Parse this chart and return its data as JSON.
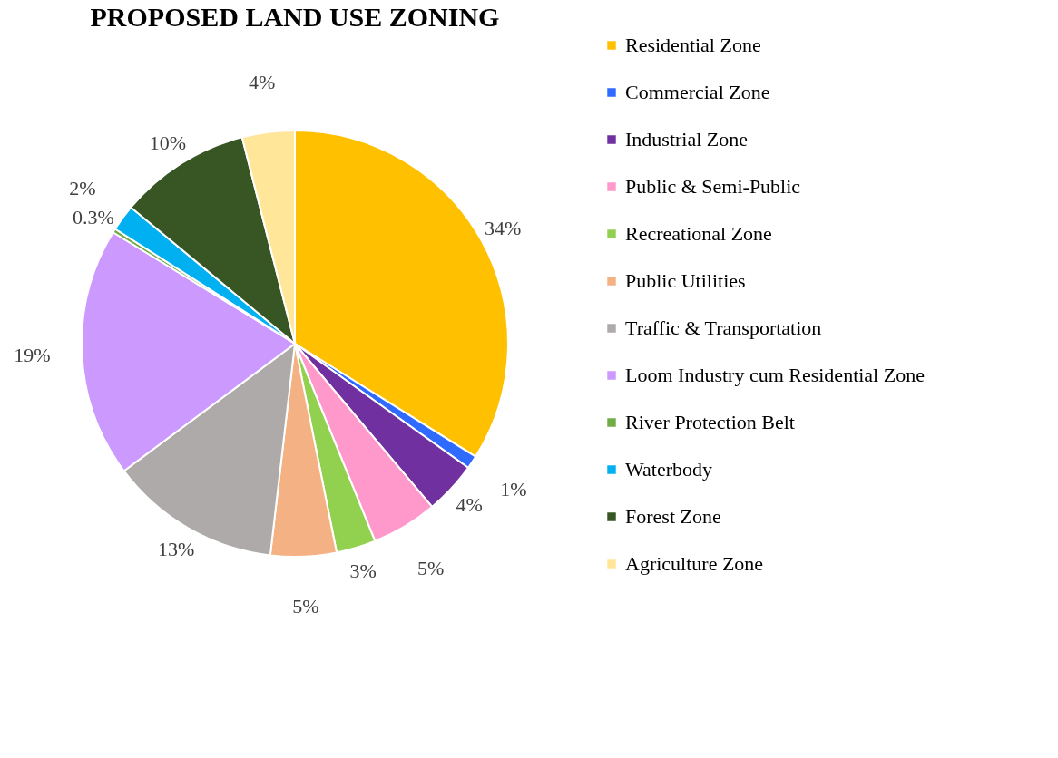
{
  "chart_data": {
    "type": "pie",
    "title": "PROPOSED LAND USE ZONING",
    "categories": [
      "Residential Zone",
      "Commercial Zone",
      "Industrial Zone",
      "Public & Semi-Public",
      "Recreational Zone",
      "Public Utilities",
      "Traffic & Transportation",
      "Loom Industry cum Residential Zone",
      "River Protection Belt",
      "Waterbody",
      "Forest Zone",
      "Agriculture Zone"
    ],
    "values": [
      34,
      1,
      4,
      5,
      3,
      5,
      13,
      19,
      0.3,
      2,
      10,
      4
    ],
    "value_labels": [
      "34%",
      "1%",
      "4%",
      "5%",
      "3%",
      "5%",
      "13%",
      "19%",
      "0.3%",
      "2%",
      "10%",
      "4%"
    ],
    "colors": [
      "#ffc000",
      "#2f6bff",
      "#7030a0",
      "#ff99cc",
      "#92d050",
      "#f4b183",
      "#aeaaaa",
      "#cc99ff",
      "#70ad47",
      "#00b0f0",
      "#375623",
      "#ffe699"
    ],
    "legend": "right"
  }
}
